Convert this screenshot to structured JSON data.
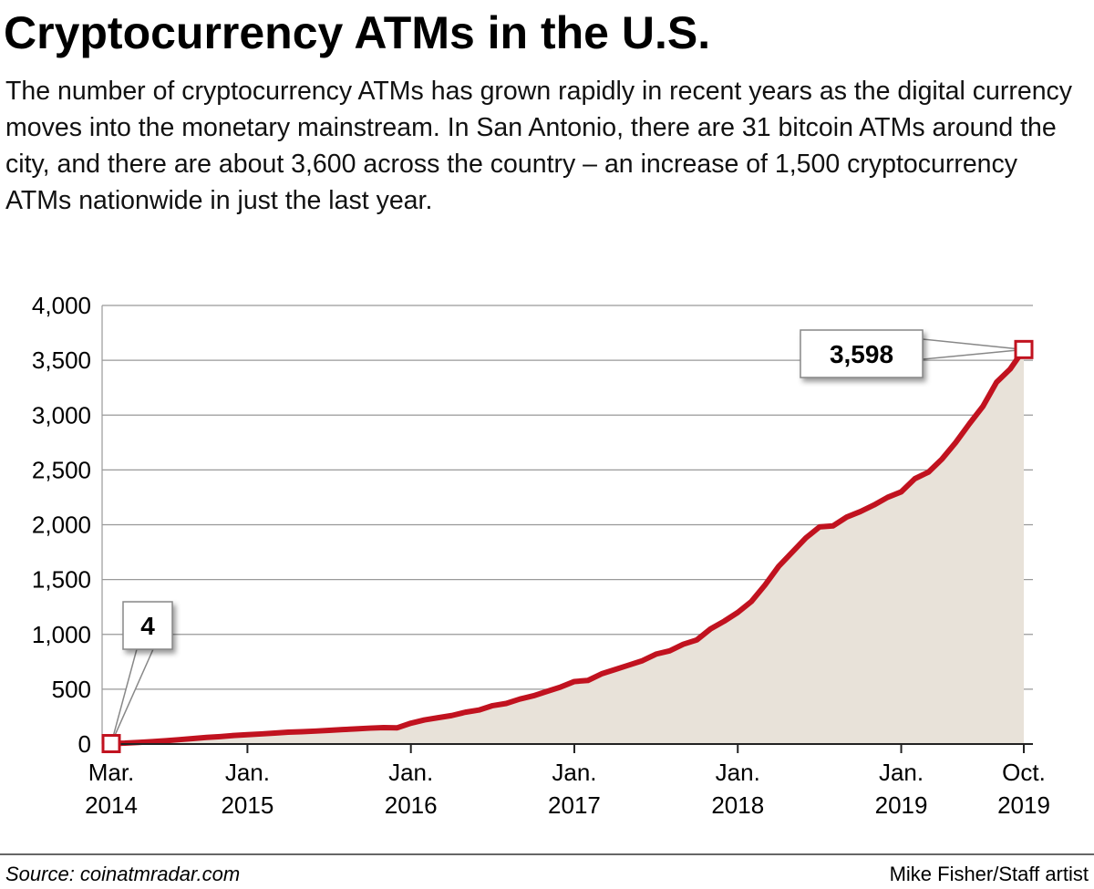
{
  "chart_data": {
    "type": "area",
    "title": "Cryptocurrency ATMs in the U.S.",
    "subtitle": "The number of cryptocurrency ATMs has grown rapidly in recent years as the digital currency moves into the monetary mainstream. In San Antonio, there are 31 bitcoin ATMs around the city, and there are about 3,600 across the country – an increase of 1,500 cryptocurrency ATMs nationwide in just the last year.",
    "source": "Source: coinatmradar.com",
    "credit": "Mike Fisher/Staff artist",
    "x": [
      "2014-03",
      "2014-04",
      "2014-05",
      "2014-06",
      "2014-07",
      "2014-08",
      "2014-09",
      "2014-10",
      "2014-11",
      "2014-12",
      "2015-01",
      "2015-02",
      "2015-03",
      "2015-04",
      "2015-05",
      "2015-06",
      "2015-07",
      "2015-08",
      "2015-09",
      "2015-10",
      "2015-11",
      "2015-12",
      "2016-01",
      "2016-02",
      "2016-03",
      "2016-04",
      "2016-05",
      "2016-06",
      "2016-07",
      "2016-08",
      "2016-09",
      "2016-10",
      "2016-11",
      "2016-12",
      "2017-01",
      "2017-02",
      "2017-03",
      "2017-04",
      "2017-05",
      "2017-06",
      "2017-07",
      "2017-08",
      "2017-09",
      "2017-10",
      "2017-11",
      "2017-12",
      "2018-01",
      "2018-02",
      "2018-03",
      "2018-04",
      "2018-05",
      "2018-06",
      "2018-07",
      "2018-08",
      "2018-09",
      "2018-10",
      "2018-11",
      "2018-12",
      "2019-01",
      "2019-02",
      "2019-03",
      "2019-04",
      "2019-05",
      "2019-06",
      "2019-07",
      "2019-08",
      "2019-09",
      "2019-10"
    ],
    "series": [
      {
        "color": "#c1121f",
        "fill": "#e8e2d9",
        "values": [
          4,
          8,
          15,
          22,
          30,
          40,
          50,
          60,
          68,
          78,
          85,
          92,
          100,
          108,
          112,
          118,
          125,
          132,
          138,
          145,
          150,
          148,
          190,
          220,
          240,
          260,
          290,
          310,
          350,
          370,
          410,
          440,
          480,
          520,
          570,
          580,
          640,
          680,
          720,
          760,
          820,
          850,
          910,
          950,
          1050,
          1120,
          1200,
          1300,
          1450,
          1620,
          1750,
          1880,
          1980,
          1990,
          2070,
          2120,
          2180,
          2250,
          2300,
          2420,
          2480,
          2600,
          2750,
          2920,
          3080,
          3300,
          3420,
          3598
        ]
      }
    ],
    "annotations": [
      {
        "x": "2014-03",
        "label": "4"
      },
      {
        "x": "2019-10",
        "label": "3,598"
      }
    ],
    "xlim": [
      "2014-03",
      "2019-10"
    ],
    "xticks": [
      {
        "value": "2014-03",
        "label": "Mar. 2014"
      },
      {
        "value": "2015-01",
        "label": "Jan. 2015"
      },
      {
        "value": "2016-01",
        "label": "Jan. 2016"
      },
      {
        "value": "2017-01",
        "label": "Jan. 2017"
      },
      {
        "value": "2018-01",
        "label": "Jan. 2018"
      },
      {
        "value": "2019-01",
        "label": "Jan. 2019"
      },
      {
        "value": "2019-10",
        "label": "Oct. 2019"
      }
    ],
    "ylim": [
      0,
      4000
    ],
    "yticks": [
      0,
      {
        "value": 500,
        "label": "500"
      },
      {
        "value": 1000,
        "label": "1,000"
      },
      {
        "value": 1500,
        "label": "1,500"
      },
      {
        "value": 2000,
        "label": "2,000"
      },
      {
        "value": 2500,
        "label": "2,500"
      },
      {
        "value": 3000,
        "label": "3,000"
      },
      {
        "value": 3500,
        "label": "3,500"
      },
      {
        "value": 4000,
        "label": "4,000"
      }
    ],
    "grid": true
  }
}
